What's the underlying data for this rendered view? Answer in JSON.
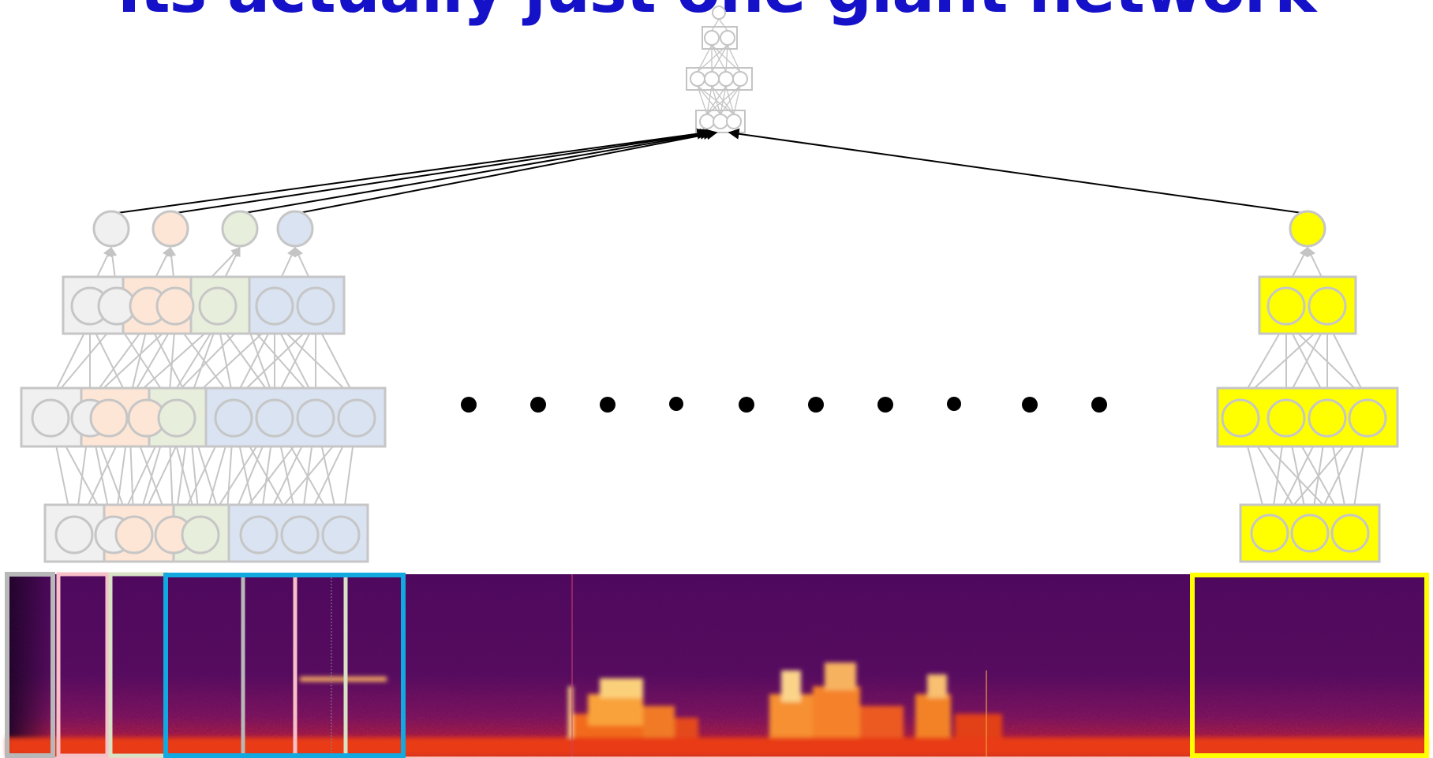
{
  "slide": {
    "title": "Its actually just one giant network"
  },
  "colors": {
    "title": "#1411c8",
    "node_gray": "#c8c8c8",
    "gray_net": "#f0f0f0",
    "pink_net": "#fde6d6",
    "green_net": "#e8eedc",
    "blue_net": "#d9e3f1",
    "yellow_net": "#ffff00",
    "pink_frame": "#f7c0c8",
    "green_frame": "#d8e2c4",
    "blue_frame": "#12a8e0",
    "yellow_frame": "#ffff00",
    "gray_frame": "#b8b8b8"
  },
  "diagram": {
    "top_network": "small-top-network",
    "frame_networks": [
      "gray",
      "pink",
      "green",
      "blue",
      "yellow"
    ],
    "ellipsis_dots": 10,
    "spectrogram": "speech-spectrogram"
  }
}
